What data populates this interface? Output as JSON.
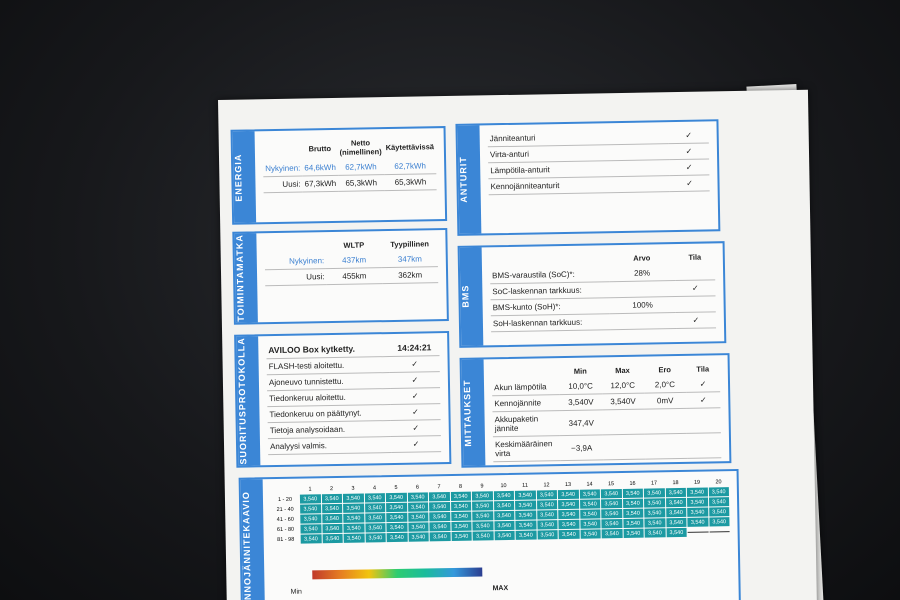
{
  "energia": {
    "title": "ENERGIA",
    "columns": [
      "Brutto",
      "Netto (nimellinen)",
      "Käytettävissä"
    ],
    "rows": [
      {
        "label": "Nykyinen:",
        "cells": [
          "64,6kWh",
          "62,7kWh",
          "62,7kWh"
        ]
      },
      {
        "label": "Uusi:",
        "cells": [
          "67,3kWh",
          "65,3kWh",
          "65,3kWh"
        ]
      }
    ]
  },
  "anturit": {
    "title": "ANTURIT",
    "columns": [],
    "rows": [
      {
        "label": "Jänniteanturi",
        "cells": [],
        "status": "✓"
      },
      {
        "label": "Virta-anturi",
        "cells": [],
        "status": "✓"
      },
      {
        "label": "Lämpötila-anturit",
        "cells": [],
        "status": "✓"
      },
      {
        "label": "Kennojänniteanturit",
        "cells": [],
        "status": "✓"
      }
    ]
  },
  "toimintamatka": {
    "title": "TOIMINTAMATKA",
    "columns": [
      "WLTP",
      "Tyypillinen"
    ],
    "rows": [
      {
        "label": "Nykyinen:",
        "cells": [
          "437km",
          "347km"
        ]
      },
      {
        "label": "Uusi:",
        "cells": [
          "455km",
          "362km"
        ]
      }
    ]
  },
  "bms": {
    "title": "BMS",
    "columns": [
      "Arvo",
      "Tila"
    ],
    "rows": [
      {
        "label": "BMS-varaustila (SoC)*:",
        "cells": [
          "28%"
        ]
      },
      {
        "label": "SoC-laskennan tarkkuus:",
        "cells": [],
        "status": "✓"
      },
      {
        "label": "BMS-kunto (SoH)*:",
        "cells": [
          "100%"
        ]
      },
      {
        "label": "SoH-laskennan tarkkuus:",
        "cells": [],
        "status": "✓"
      }
    ]
  },
  "suoritusprotokolla": {
    "title": "SUORITUSPROTOKOLLA",
    "columns": [],
    "rows": [
      {
        "label": "AVILOO Box kytketty.",
        "cells": [
          "14:24:21"
        ]
      },
      {
        "label": "FLASH-testi aloitettu.",
        "cells": [],
        "status": "✓"
      },
      {
        "label": "Ajoneuvo tunnistettu.",
        "cells": [],
        "status": "✓"
      },
      {
        "label": "Tiedonkeruu aloitettu.",
        "cells": [],
        "status": "✓"
      },
      {
        "label": "Tiedonkeruu on päättynyt.",
        "cells": [],
        "status": "✓"
      },
      {
        "label": "Tietoja analysoidaan.",
        "cells": [],
        "status": "✓"
      },
      {
        "label": "Analyysi valmis.",
        "cells": [],
        "status": "✓"
      }
    ]
  },
  "mittaukset": {
    "title": "MITTAUKSET",
    "columns": [
      "Min",
      "Max",
      "Ero",
      "Tila"
    ],
    "rows": [
      {
        "label": "Akun lämpötila",
        "cells": [
          "10,0°C",
          "12,0°C",
          "2,0°C"
        ],
        "status": "✓"
      },
      {
        "label": "Kennojännite",
        "cells": [
          "3,540V",
          "3,540V",
          "0mV"
        ],
        "status": "✓"
      },
      {
        "label": "Akkupaketin jännite",
        "cells": [
          "347,4V"
        ]
      },
      {
        "label": "Keskimääräinen virta",
        "cells": [
          "−3,9A"
        ]
      }
    ]
  },
  "kennojannitekaavio": {
    "title": "KENNOJÄNNITEKAAVIO",
    "columns": [
      "1",
      "2",
      "3",
      "4",
      "5",
      "6",
      "7",
      "8",
      "9",
      "10",
      "11",
      "12",
      "13",
      "14",
      "15",
      "16",
      "17",
      "18",
      "19",
      "20"
    ],
    "rows": [
      {
        "label": "1 - 20",
        "cells": [
          "3,540",
          "3,540",
          "3,540",
          "3,540",
          "3,540",
          "3,540",
          "3,540",
          "3,540",
          "3,540",
          "3,540",
          "3,540",
          "3,540",
          "3,540",
          "3,540",
          "3,540",
          "3,540",
          "3,540",
          "3,540",
          "3,540",
          "3,540"
        ]
      },
      {
        "label": "21 - 40",
        "cells": [
          "3,540",
          "3,540",
          "3,540",
          "3,540",
          "3,540",
          "3,540",
          "3,540",
          "3,540",
          "3,540",
          "3,540",
          "3,540",
          "3,540",
          "3,540",
          "3,540",
          "3,540",
          "3,540",
          "3,540",
          "3,540",
          "3,540",
          "3,540"
        ]
      },
      {
        "label": "41 - 60",
        "cells": [
          "3,540",
          "3,540",
          "3,540",
          "3,540",
          "3,540",
          "3,540",
          "3,540",
          "3,540",
          "3,540",
          "3,540",
          "3,540",
          "3,540",
          "3,540",
          "3,540",
          "3,540",
          "3,540",
          "3,540",
          "3,540",
          "3,540",
          "3,540"
        ]
      },
      {
        "label": "61 - 80",
        "cells": [
          "3,540",
          "3,540",
          "3,540",
          "3,540",
          "3,540",
          "3,540",
          "3,540",
          "3,540",
          "3,540",
          "3,540",
          "3,540",
          "3,540",
          "3,540",
          "3,540",
          "3,540",
          "3,540",
          "3,540",
          "3,540",
          "3,540",
          "3,540"
        ]
      },
      {
        "label": "81 - 98",
        "cells": [
          "3,540",
          "3,540",
          "3,540",
          "3,540",
          "3,540",
          "3,540",
          "3,540",
          "3,540",
          "3,540",
          "3,540",
          "3,540",
          "3,540",
          "3,540",
          "3,540",
          "3,540",
          "3,540",
          "3,540",
          "3,540"
        ]
      }
    ],
    "scale_min": "Min",
    "scale_max": "MAX"
  }
}
